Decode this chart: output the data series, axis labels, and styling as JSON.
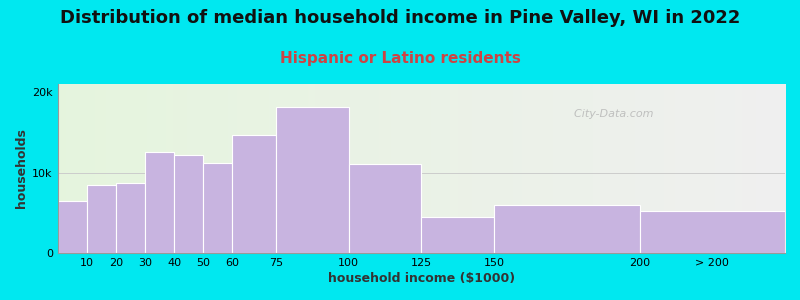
{
  "title": "Distribution of median household income in Pine Valley, WI in 2022",
  "subtitle": "Hispanic or Latino residents",
  "xlabel": "household income ($1000)",
  "ylabel": "households",
  "bar_lefts": [
    0,
    10,
    20,
    30,
    40,
    50,
    60,
    75,
    100,
    125,
    150,
    200
  ],
  "bar_widths": [
    10,
    10,
    10,
    10,
    10,
    10,
    15,
    25,
    25,
    25,
    50,
    50
  ],
  "bar_heights": [
    6500,
    8500,
    8700,
    12500,
    12200,
    11200,
    14700,
    18200,
    11000,
    4500,
    6000,
    5200
  ],
  "bar_color": "#c8b4e0",
  "bar_edge_color": "#ffffff",
  "background_color": "#00e8f0",
  "yticks": [
    0,
    10000,
    20000
  ],
  "ytick_labels": [
    "0",
    "10k",
    "20k"
  ],
  "ylim": [
    0,
    21000
  ],
  "xlim": [
    0,
    250
  ],
  "xtick_positions": [
    10,
    20,
    30,
    40,
    50,
    60,
    75,
    100,
    125,
    150,
    200,
    225
  ],
  "xtick_labels": [
    "10",
    "20",
    "30",
    "40",
    "50",
    "60",
    "75",
    "100",
    "125",
    "150",
    "200",
    "> 200"
  ],
  "title_fontsize": 13,
  "subtitle_fontsize": 11,
  "subtitle_color": "#cc4444",
  "watermark": "  City-Data.com",
  "title_color": "#111111",
  "axis_label_fontsize": 9,
  "tick_fontsize": 8
}
